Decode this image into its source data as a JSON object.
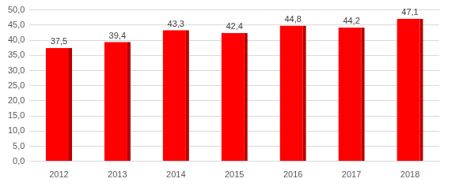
{
  "chart_data": {
    "type": "bar",
    "categories": [
      "2012",
      "2013",
      "2014",
      "2015",
      "2016",
      "2017",
      "2018"
    ],
    "values": [
      37.5,
      39.4,
      43.3,
      42.4,
      44.8,
      44.2,
      47.1
    ],
    "value_labels": [
      "37,5",
      "39,4",
      "43,3",
      "42,4",
      "44,8",
      "44,2",
      "47,1"
    ],
    "color": "#ff0000",
    "ylim": [
      0,
      50
    ],
    "yticks": [
      {
        "value": 0,
        "label": "0,0"
      },
      {
        "value": 5,
        "label": "5,0"
      },
      {
        "value": 10,
        "label": "10,0"
      },
      {
        "value": 15,
        "label": "15,0"
      },
      {
        "value": 20,
        "label": "20,0"
      },
      {
        "value": 25,
        "label": "25,0"
      },
      {
        "value": 30,
        "label": "30,0"
      },
      {
        "value": 35,
        "label": "35,0"
      },
      {
        "value": 40,
        "label": "40,0"
      },
      {
        "value": 45,
        "label": "45,0"
      },
      {
        "value": 50,
        "label": "50,0"
      }
    ],
    "grid": true,
    "data_labels": true
  }
}
